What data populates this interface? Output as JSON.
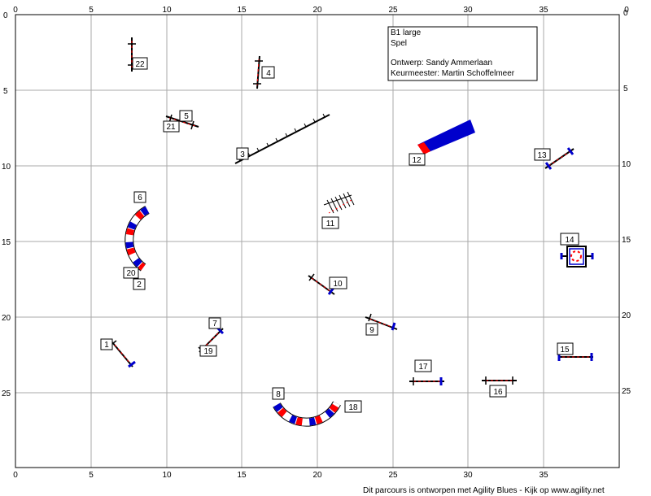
{
  "course": {
    "title": "B1 large",
    "type": "Spel",
    "designer": "Ontwerp: Sandy Ammerlaan",
    "judge": "Keurmeester: Martin Schoffelmeer"
  },
  "axes": {
    "x_ticks": [
      "0",
      "5",
      "10",
      "15",
      "20",
      "25",
      "30",
      "35"
    ],
    "y_ticks": [
      "0",
      "5",
      "10",
      "15",
      "20",
      "25"
    ]
  },
  "colors": {
    "pole_red": "#ff0000",
    "pole_blue": "#0000cc",
    "grid": "#aaaaaa",
    "line": "#000000"
  },
  "obstacles": [
    {
      "id": "1",
      "type": "jump",
      "label": "1"
    },
    {
      "id": "2",
      "type": "tunnel",
      "label": "2"
    },
    {
      "id": "3",
      "type": "dogwalk",
      "label": "3"
    },
    {
      "id": "4",
      "type": "jump",
      "label": "4"
    },
    {
      "id": "5",
      "type": "jump",
      "label": "5"
    },
    {
      "id": "6",
      "type": "tunnel",
      "label": "6"
    },
    {
      "id": "7",
      "type": "jump",
      "label": "7"
    },
    {
      "id": "8",
      "type": "tunnel",
      "label": "8"
    },
    {
      "id": "9",
      "type": "jump",
      "label": "9"
    },
    {
      "id": "10",
      "type": "jump",
      "label": "10"
    },
    {
      "id": "11",
      "type": "weave",
      "label": "11"
    },
    {
      "id": "12",
      "type": "chute",
      "label": "12"
    },
    {
      "id": "13",
      "type": "jump",
      "label": "13"
    },
    {
      "id": "14",
      "type": "tire",
      "label": "14"
    },
    {
      "id": "15",
      "type": "jump",
      "label": "15"
    },
    {
      "id": "16",
      "type": "jump",
      "label": "16"
    },
    {
      "id": "17",
      "type": "jump",
      "label": "17"
    },
    {
      "id": "18",
      "type": "tunnel",
      "label": "18"
    },
    {
      "id": "19",
      "type": "jump",
      "label": "19"
    },
    {
      "id": "20",
      "type": "tunnel",
      "label": "20"
    },
    {
      "id": "21",
      "type": "jump",
      "label": "21"
    },
    {
      "id": "22",
      "type": "jump",
      "label": "22"
    }
  ],
  "footer": "Dit parcours is ontworpen met Agility Blues - Kijk op www.agility.net"
}
